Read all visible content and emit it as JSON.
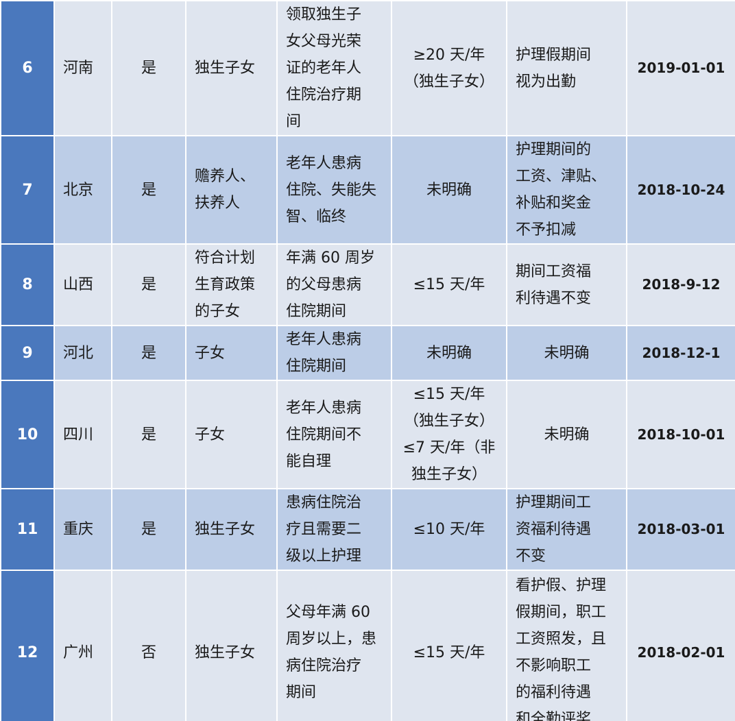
{
  "table": {
    "rows": [
      [
        "6",
        "河南",
        "是",
        "独生子女",
        "领取独生子\n女父母光荣\n证的老年人\n住院治疗期\n间",
        "≥20 天/年\n（独生子女）",
        "护理假期间\n视为出勤",
        "2019-01-01"
      ],
      [
        "7",
        "北京",
        "是",
        "赡养人、\n扶养人",
        "老年人患病\n住院、失能失\n智、临终",
        "未明确",
        "护理期间的\n工资、津贴、\n补贴和奖金\n不予扣减",
        "2018-10-24"
      ],
      [
        "8",
        "山西",
        "是",
        "符合计划\n生育政策\n的子女",
        "年满 60 周岁\n的父母患病\n住院期间",
        "≤15 天/年",
        "期间工资福\n利待遇不变",
        "2018-9-12"
      ],
      [
        "9",
        "河北",
        "是",
        "子女",
        "老年人患病\n住院期间",
        "未明确",
        "未明确",
        "2018-12-1"
      ],
      [
        "10",
        "四川",
        "是",
        "子女",
        "老年人患病\n住院期间不\n能自理",
        "≤15 天/年\n（独生子女）\n≤7 天/年（非\n独生子女）",
        "未明确",
        "2018-10-01"
      ],
      [
        "11",
        "重庆",
        "是",
        "独生子女",
        "患病住院治\n疗且需要二\n级以上护理",
        "≤10 天/年",
        "护理期间工\n资福利待遇\n不变",
        "2018-03-01"
      ],
      [
        "12",
        "广州",
        "否",
        "独生子女",
        "父母年满 60\n周岁以上，患\n病住院治疗\n期间",
        "≤15 天/年",
        "看护假、护理\n假期间，职工\n工资照发，且\n不影响职工\n的福利待遇\n和全勤评奖",
        "2018-02-01"
      ]
    ]
  }
}
